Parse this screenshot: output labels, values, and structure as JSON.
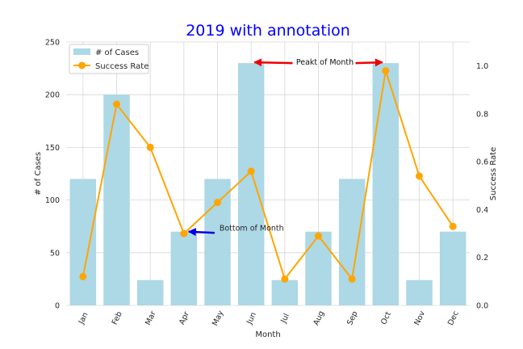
{
  "chart_data": {
    "type": "bar+line",
    "title": "2019 with annotation",
    "xlabel": "Month",
    "ylabel_left": "# of Cases",
    "ylabel_right": "Success Rate",
    "categories": [
      "Jan",
      "Feb",
      "Mar",
      "Apr",
      "May",
      "Jun",
      "Jul",
      "Aug",
      "Sep",
      "Oct",
      "Nov",
      "Dec"
    ],
    "bar_series": {
      "name": "# of Cases",
      "values": [
        120,
        200,
        24,
        70,
        120,
        230,
        24,
        70,
        120,
        230,
        24,
        70
      ]
    },
    "line_series": {
      "name": "Success Rate",
      "values": [
        0.12,
        0.84,
        0.66,
        0.3,
        0.43,
        0.56,
        0.11,
        0.29,
        0.11,
        0.98,
        0.54,
        0.33
      ]
    },
    "ylim_left": [
      0,
      250
    ],
    "yticks_left": [
      0,
      50,
      100,
      150,
      200,
      250
    ],
    "ylim_right": [
      0.0,
      1.1
    ],
    "yticks_right": [
      "0.0",
      "0.2",
      "0.4",
      "0.6",
      "0.8",
      "1.0"
    ],
    "grid": true,
    "legend_position": "top-left",
    "annotations": [
      {
        "text": "Bottom of Month",
        "target_category": "Apr",
        "target_value": 70,
        "arrow_color": "#0000dd"
      },
      {
        "text": "Peakt of Month",
        "targets": [
          {
            "category": "Jun",
            "value": 230
          },
          {
            "category": "Oct",
            "value": 230
          }
        ],
        "arrow_color": "#ee0000"
      }
    ],
    "colors": {
      "bars": "#add8e6",
      "line": "#ffa500",
      "title": "#0000ff",
      "grid": "#d6d6d6",
      "text": "#262626"
    }
  }
}
